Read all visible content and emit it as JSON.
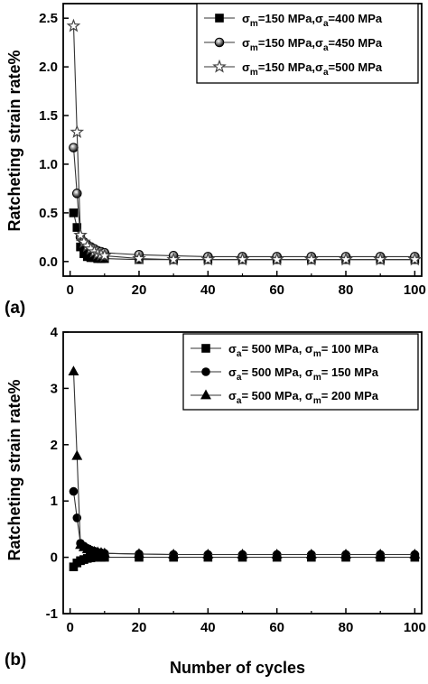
{
  "chart_data": [
    {
      "type": "line",
      "panel_label": "(a)",
      "xlabel": "",
      "ylabel": "Ratcheting strain rate%",
      "xlim": [
        -2,
        102
      ],
      "ylim": [
        -0.15,
        2.65
      ],
      "xticks": [
        "0",
        "20",
        "40",
        "60",
        "80",
        "100"
      ],
      "yticks": [
        "0.0",
        "0.5",
        "1.0",
        "1.5",
        "2.0",
        "2.5"
      ],
      "legend_position": "top-right",
      "series": [
        {
          "name": "σm=150 MPa,σa=400 MPa",
          "legend": {
            "pre": "σ",
            "sub1": "m",
            "mid": "=150 MPa,σ",
            "sub2": "a",
            "post": "=400 MPa"
          },
          "marker": "square",
          "x": [
            1,
            2,
            3,
            4,
            5,
            6,
            7,
            8,
            9,
            10,
            20,
            30,
            40,
            50,
            60,
            70,
            80,
            90,
            100
          ],
          "y": [
            0.5,
            0.35,
            0.15,
            0.08,
            0.05,
            0.04,
            0.04,
            0.03,
            0.03,
            0.03,
            0.02,
            0.02,
            0.02,
            0.02,
            0.02,
            0.02,
            0.02,
            0.02,
            0.02
          ]
        },
        {
          "name": "σm=150 MPa,σa=450 MPa",
          "legend": {
            "pre": "σ",
            "sub1": "m",
            "mid": "=150 MPa,σ",
            "sub2": "a",
            "post": "=450 MPa"
          },
          "marker": "sphere",
          "x": [
            1,
            2,
            3,
            4,
            5,
            6,
            7,
            8,
            9,
            10,
            20,
            30,
            40,
            50,
            60,
            70,
            80,
            90,
            100
          ],
          "y": [
            1.17,
            0.7,
            0.25,
            0.2,
            0.17,
            0.15,
            0.13,
            0.11,
            0.1,
            0.09,
            0.07,
            0.06,
            0.05,
            0.05,
            0.05,
            0.05,
            0.05,
            0.05,
            0.05
          ]
        },
        {
          "name": "σm=150 MPa,σa=500 MPa",
          "legend": {
            "pre": "σ",
            "sub1": "m",
            "mid": "=150 MPa,σ",
            "sub2": "a",
            "post": "=500 MPa"
          },
          "marker": "star",
          "x": [
            1,
            2,
            3,
            4,
            5,
            6,
            7,
            8,
            9,
            10,
            20,
            30,
            40,
            50,
            60,
            70,
            80,
            90,
            100
          ],
          "y": [
            2.42,
            1.33,
            0.27,
            0.2,
            0.16,
            0.13,
            0.1,
            0.08,
            0.07,
            0.06,
            0.03,
            0.02,
            0.02,
            0.02,
            0.02,
            0.02,
            0.02,
            0.02,
            0.02
          ]
        }
      ]
    },
    {
      "type": "line",
      "panel_label": "(b)",
      "xlabel": "Number of cycles",
      "ylabel": "Ratcheting strain rate%",
      "xlim": [
        -2,
        102
      ],
      "ylim": [
        -1,
        4
      ],
      "xticks": [
        "0",
        "20",
        "40",
        "60",
        "80",
        "100"
      ],
      "yticks": [
        "-1",
        "0",
        "1",
        "2",
        "3",
        "4"
      ],
      "legend_position": "top-right",
      "series": [
        {
          "name": "σa= 500 MPa, σm= 100 MPa",
          "legend": {
            "pre": "σ",
            "sub1": "a",
            "mid": "= 500 MPa, σ",
            "sub2": "m",
            "post": "= 100 MPa"
          },
          "marker": "square",
          "x": [
            1,
            2,
            3,
            4,
            5,
            6,
            7,
            8,
            9,
            10,
            20,
            30,
            40,
            50,
            60,
            70,
            80,
            90,
            100
          ],
          "y": [
            -0.17,
            -0.1,
            -0.06,
            -0.04,
            -0.02,
            -0.01,
            0,
            0,
            0,
            0,
            0,
            0,
            0,
            0,
            0,
            0,
            0,
            0,
            0
          ]
        },
        {
          "name": "σa= 500 MPa, σm= 150 MPa",
          "legend": {
            "pre": "σ",
            "sub1": "a",
            "mid": "= 500 MPa, σ",
            "sub2": "m",
            "post": "= 150 MPa"
          },
          "marker": "circle",
          "x": [
            1,
            2,
            3,
            4,
            5,
            6,
            7,
            8,
            9,
            10,
            20,
            30,
            40,
            50,
            60,
            70,
            80,
            90,
            100
          ],
          "y": [
            1.17,
            0.7,
            0.25,
            0.2,
            0.16,
            0.13,
            0.11,
            0.09,
            0.08,
            0.07,
            0.06,
            0.05,
            0.05,
            0.05,
            0.05,
            0.05,
            0.05,
            0.05,
            0.05
          ]
        },
        {
          "name": "σa= 500 MPa, σm= 200 MPa",
          "legend": {
            "pre": "σ",
            "sub1": "a",
            "mid": "= 500 MPa, σ",
            "sub2": "m",
            "post": "= 200 MPa"
          },
          "marker": "triangle",
          "x": [
            1,
            2,
            3,
            4,
            5,
            6,
            7,
            8,
            9,
            10,
            20,
            30,
            40,
            50,
            60,
            70,
            80,
            90,
            100
          ],
          "y": [
            3.3,
            1.8,
            0.22,
            0.18,
            0.14,
            0.12,
            0.1,
            0.09,
            0.08,
            0.07,
            0.06,
            0.05,
            0.05,
            0.05,
            0.05,
            0.05,
            0.05,
            0.05,
            0.05
          ]
        }
      ]
    }
  ]
}
